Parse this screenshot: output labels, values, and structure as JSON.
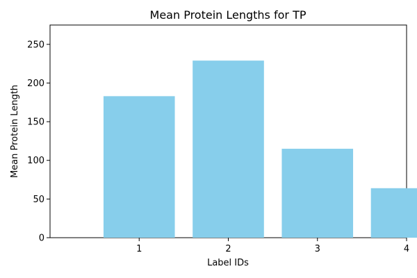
{
  "chart_data": {
    "type": "bar",
    "title": "Mean Protein Lengths for TP",
    "xlabel": "Label IDs",
    "ylabel": "Mean Protein Length",
    "categories": [
      "1",
      "2",
      "3",
      "4"
    ],
    "values": [
      183,
      229,
      115,
      64
    ],
    "ylim": [
      0,
      275
    ],
    "yticks": [
      0,
      50,
      100,
      150,
      200,
      250
    ],
    "bar_color": "#87CEEB",
    "grid": false,
    "legend": "none"
  }
}
